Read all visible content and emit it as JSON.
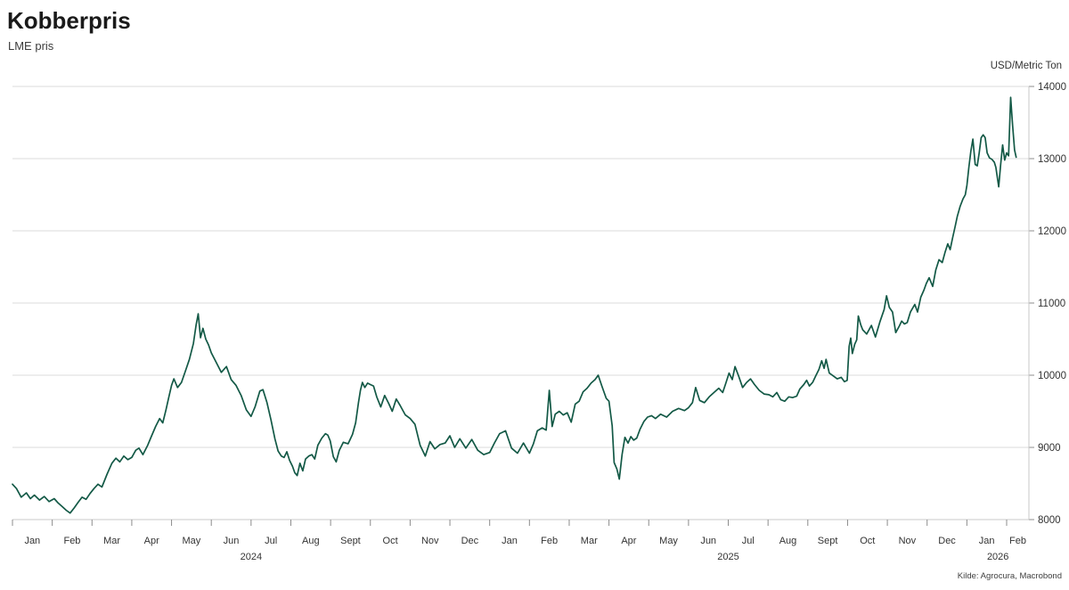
{
  "header": {
    "title": "Kobberpris",
    "subtitle": "LME pris"
  },
  "source": "Kilde: Agrocura, Macrobond",
  "colors": {
    "line": "#135946",
    "grid": "#dbdbdb",
    "axis": "#c8c8c8",
    "tick": "#8c8c8c",
    "text": "#333333"
  },
  "chart_data": {
    "type": "line",
    "title": "Kobberpris",
    "subtitle": "LME pris",
    "xlabel": "",
    "ylabel": "USD/Metric Ton",
    "ylim": [
      8000,
      14000
    ],
    "y_ticks": [
      14000,
      13000,
      12000,
      11000,
      10000,
      9000,
      8000
    ],
    "grid": "horizontal",
    "legend": "none",
    "x_domain_months": [
      0,
      25.56
    ],
    "x_months": [
      "Jan",
      "Feb",
      "Mar",
      "Apr",
      "May",
      "Jun",
      "Jul",
      "Aug",
      "Sept",
      "Oct",
      "Nov",
      "Dec",
      "Jan",
      "Feb",
      "Mar",
      "Apr",
      "May",
      "Jun",
      "Jul",
      "Aug",
      "Sept",
      "Oct",
      "Nov",
      "Dec",
      "Jan",
      "Feb"
    ],
    "x_years": [
      {
        "label": "2024",
        "center_month": 6.0
      },
      {
        "label": "2025",
        "center_month": 18.0
      },
      {
        "label": "2026",
        "center_month": 24.78
      }
    ],
    "series": [
      {
        "name": "LME pris",
        "color": "#135946",
        "points": [
          [
            0.0,
            8490
          ],
          [
            0.1,
            8430
          ],
          [
            0.22,
            8310
          ],
          [
            0.35,
            8370
          ],
          [
            0.45,
            8290
          ],
          [
            0.55,
            8340
          ],
          [
            0.68,
            8270
          ],
          [
            0.8,
            8320
          ],
          [
            0.92,
            8250
          ],
          [
            1.05,
            8290
          ],
          [
            1.15,
            8230
          ],
          [
            1.25,
            8180
          ],
          [
            1.35,
            8130
          ],
          [
            1.45,
            8090
          ],
          [
            1.55,
            8160
          ],
          [
            1.65,
            8240
          ],
          [
            1.75,
            8310
          ],
          [
            1.85,
            8280
          ],
          [
            1.95,
            8360
          ],
          [
            2.05,
            8430
          ],
          [
            2.15,
            8490
          ],
          [
            2.25,
            8450
          ],
          [
            2.38,
            8630
          ],
          [
            2.5,
            8780
          ],
          [
            2.6,
            8850
          ],
          [
            2.7,
            8800
          ],
          [
            2.8,
            8880
          ],
          [
            2.9,
            8830
          ],
          [
            3.0,
            8860
          ],
          [
            3.1,
            8960
          ],
          [
            3.18,
            8990
          ],
          [
            3.28,
            8900
          ],
          [
            3.4,
            9030
          ],
          [
            3.5,
            9160
          ],
          [
            3.6,
            9290
          ],
          [
            3.7,
            9400
          ],
          [
            3.78,
            9340
          ],
          [
            3.86,
            9520
          ],
          [
            3.93,
            9690
          ],
          [
            4.0,
            9860
          ],
          [
            4.06,
            9950
          ],
          [
            4.15,
            9830
          ],
          [
            4.25,
            9900
          ],
          [
            4.35,
            10060
          ],
          [
            4.45,
            10220
          ],
          [
            4.55,
            10440
          ],
          [
            4.62,
            10700
          ],
          [
            4.67,
            10850
          ],
          [
            4.73,
            10520
          ],
          [
            4.79,
            10650
          ],
          [
            4.86,
            10500
          ],
          [
            4.93,
            10420
          ],
          [
            5.0,
            10310
          ],
          [
            5.12,
            10180
          ],
          [
            5.25,
            10040
          ],
          [
            5.38,
            10120
          ],
          [
            5.5,
            9940
          ],
          [
            5.62,
            9860
          ],
          [
            5.75,
            9720
          ],
          [
            5.88,
            9520
          ],
          [
            6.0,
            9430
          ],
          [
            6.1,
            9560
          ],
          [
            6.22,
            9780
          ],
          [
            6.3,
            9800
          ],
          [
            6.4,
            9620
          ],
          [
            6.5,
            9380
          ],
          [
            6.6,
            9120
          ],
          [
            6.68,
            8950
          ],
          [
            6.76,
            8880
          ],
          [
            6.83,
            8860
          ],
          [
            6.9,
            8940
          ],
          [
            6.97,
            8820
          ],
          [
            7.04,
            8740
          ],
          [
            7.1,
            8650
          ],
          [
            7.16,
            8610
          ],
          [
            7.23,
            8780
          ],
          [
            7.3,
            8675
          ],
          [
            7.37,
            8840
          ],
          [
            7.45,
            8880
          ],
          [
            7.53,
            8900
          ],
          [
            7.6,
            8840
          ],
          [
            7.68,
            9030
          ],
          [
            7.78,
            9130
          ],
          [
            7.87,
            9190
          ],
          [
            7.93,
            9170
          ],
          [
            7.99,
            9090
          ],
          [
            8.07,
            8870
          ],
          [
            8.14,
            8800
          ],
          [
            8.22,
            8960
          ],
          [
            8.32,
            9070
          ],
          [
            8.44,
            9050
          ],
          [
            8.55,
            9180
          ],
          [
            8.63,
            9340
          ],
          [
            8.7,
            9620
          ],
          [
            8.75,
            9790
          ],
          [
            8.8,
            9900
          ],
          [
            8.86,
            9830
          ],
          [
            8.93,
            9890
          ],
          [
            9.0,
            9870
          ],
          [
            9.08,
            9850
          ],
          [
            9.16,
            9700
          ],
          [
            9.26,
            9560
          ],
          [
            9.36,
            9720
          ],
          [
            9.46,
            9610
          ],
          [
            9.55,
            9500
          ],
          [
            9.65,
            9670
          ],
          [
            9.75,
            9580
          ],
          [
            9.88,
            9450
          ],
          [
            10.0,
            9400
          ],
          [
            10.12,
            9320
          ],
          [
            10.25,
            9030
          ],
          [
            10.38,
            8880
          ],
          [
            10.5,
            9080
          ],
          [
            10.62,
            8980
          ],
          [
            10.75,
            9040
          ],
          [
            10.88,
            9060
          ],
          [
            11.0,
            9160
          ],
          [
            11.12,
            9000
          ],
          [
            11.25,
            9120
          ],
          [
            11.4,
            8990
          ],
          [
            11.55,
            9110
          ],
          [
            11.7,
            8960
          ],
          [
            11.85,
            8900
          ],
          [
            12.0,
            8930
          ],
          [
            12.12,
            9060
          ],
          [
            12.25,
            9190
          ],
          [
            12.4,
            9230
          ],
          [
            12.55,
            8990
          ],
          [
            12.7,
            8920
          ],
          [
            12.85,
            9060
          ],
          [
            13.0,
            8920
          ],
          [
            13.1,
            9050
          ],
          [
            13.2,
            9230
          ],
          [
            13.32,
            9270
          ],
          [
            13.42,
            9240
          ],
          [
            13.5,
            9790
          ],
          [
            13.57,
            9290
          ],
          [
            13.65,
            9460
          ],
          [
            13.75,
            9500
          ],
          [
            13.85,
            9450
          ],
          [
            13.95,
            9480
          ],
          [
            14.05,
            9350
          ],
          [
            14.15,
            9600
          ],
          [
            14.25,
            9640
          ],
          [
            14.35,
            9770
          ],
          [
            14.45,
            9820
          ],
          [
            14.55,
            9890
          ],
          [
            14.65,
            9940
          ],
          [
            14.73,
            10000
          ],
          [
            14.82,
            9850
          ],
          [
            14.93,
            9680
          ],
          [
            15.0,
            9640
          ],
          [
            15.08,
            9300
          ],
          [
            15.13,
            8790
          ],
          [
            15.2,
            8700
          ],
          [
            15.26,
            8560
          ],
          [
            15.33,
            8900
          ],
          [
            15.4,
            9140
          ],
          [
            15.48,
            9060
          ],
          [
            15.55,
            9150
          ],
          [
            15.62,
            9100
          ],
          [
            15.7,
            9130
          ],
          [
            15.78,
            9250
          ],
          [
            15.88,
            9360
          ],
          [
            15.97,
            9420
          ],
          [
            16.07,
            9440
          ],
          [
            16.17,
            9400
          ],
          [
            16.3,
            9460
          ],
          [
            16.45,
            9420
          ],
          [
            16.6,
            9500
          ],
          [
            16.75,
            9540
          ],
          [
            16.9,
            9510
          ],
          [
            17.0,
            9550
          ],
          [
            17.1,
            9620
          ],
          [
            17.18,
            9830
          ],
          [
            17.28,
            9650
          ],
          [
            17.4,
            9620
          ],
          [
            17.52,
            9700
          ],
          [
            17.64,
            9760
          ],
          [
            17.76,
            9820
          ],
          [
            17.86,
            9760
          ],
          [
            17.94,
            9890
          ],
          [
            18.02,
            10030
          ],
          [
            18.1,
            9940
          ],
          [
            18.17,
            10120
          ],
          [
            18.26,
            9990
          ],
          [
            18.36,
            9830
          ],
          [
            18.46,
            9900
          ],
          [
            18.56,
            9950
          ],
          [
            18.66,
            9870
          ],
          [
            18.78,
            9790
          ],
          [
            18.9,
            9740
          ],
          [
            19.02,
            9730
          ],
          [
            19.12,
            9700
          ],
          [
            19.22,
            9760
          ],
          [
            19.32,
            9660
          ],
          [
            19.42,
            9640
          ],
          [
            19.52,
            9700
          ],
          [
            19.62,
            9690
          ],
          [
            19.72,
            9710
          ],
          [
            19.8,
            9810
          ],
          [
            19.9,
            9870
          ],
          [
            19.97,
            9930
          ],
          [
            20.04,
            9850
          ],
          [
            20.12,
            9900
          ],
          [
            20.2,
            9990
          ],
          [
            20.28,
            10080
          ],
          [
            20.35,
            10200
          ],
          [
            20.41,
            10095
          ],
          [
            20.46,
            10220
          ],
          [
            20.54,
            10030
          ],
          [
            20.64,
            9990
          ],
          [
            20.74,
            9950
          ],
          [
            20.84,
            9970
          ],
          [
            20.92,
            9910
          ],
          [
            20.99,
            9930
          ],
          [
            21.04,
            10400
          ],
          [
            21.08,
            10515
          ],
          [
            21.12,
            10300
          ],
          [
            21.18,
            10430
          ],
          [
            21.23,
            10490
          ],
          [
            21.27,
            10820
          ],
          [
            21.33,
            10700
          ],
          [
            21.38,
            10630
          ],
          [
            21.48,
            10570
          ],
          [
            21.6,
            10690
          ],
          [
            21.7,
            10530
          ],
          [
            21.82,
            10750
          ],
          [
            21.92,
            10910
          ],
          [
            21.98,
            11100
          ],
          [
            22.05,
            10940
          ],
          [
            22.13,
            10875
          ],
          [
            22.21,
            10590
          ],
          [
            22.3,
            10680
          ],
          [
            22.36,
            10750
          ],
          [
            22.43,
            10710
          ],
          [
            22.5,
            10730
          ],
          [
            22.58,
            10875
          ],
          [
            22.69,
            10980
          ],
          [
            22.76,
            10875
          ],
          [
            22.84,
            11080
          ],
          [
            22.92,
            11180
          ],
          [
            22.98,
            11270
          ],
          [
            23.05,
            11350
          ],
          [
            23.14,
            11230
          ],
          [
            23.22,
            11460
          ],
          [
            23.3,
            11600
          ],
          [
            23.38,
            11560
          ],
          [
            23.45,
            11700
          ],
          [
            23.52,
            11820
          ],
          [
            23.58,
            11740
          ],
          [
            23.64,
            11900
          ],
          [
            23.7,
            12050
          ],
          [
            23.76,
            12200
          ],
          [
            23.83,
            12340
          ],
          [
            23.9,
            12440
          ],
          [
            23.96,
            12500
          ],
          [
            24.0,
            12630
          ],
          [
            24.05,
            12880
          ],
          [
            24.1,
            13100
          ],
          [
            24.15,
            13270
          ],
          [
            24.21,
            12920
          ],
          [
            24.26,
            12900
          ],
          [
            24.31,
            13080
          ],
          [
            24.36,
            13290
          ],
          [
            24.41,
            13330
          ],
          [
            24.46,
            13290
          ],
          [
            24.51,
            13080
          ],
          [
            24.57,
            13010
          ],
          [
            24.63,
            12990
          ],
          [
            24.69,
            12950
          ],
          [
            24.73,
            12880
          ],
          [
            24.8,
            12610
          ],
          [
            24.85,
            12920
          ],
          [
            24.9,
            13190
          ],
          [
            24.95,
            12980
          ],
          [
            25.0,
            13080
          ],
          [
            25.05,
            13040
          ],
          [
            25.1,
            13850
          ],
          [
            25.15,
            13460
          ],
          [
            25.2,
            13120
          ],
          [
            25.24,
            13020
          ]
        ]
      }
    ]
  }
}
